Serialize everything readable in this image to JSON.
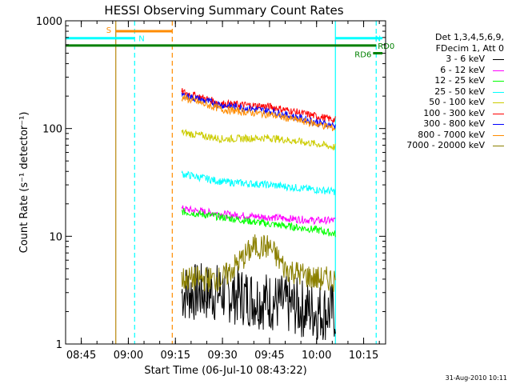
{
  "chart_data": {
    "type": "line",
    "title": "HESSI Observing Summary Count Rates",
    "xlabel": "Start Time (06-Jul-10 08:43:22)",
    "ylabel": "Count Rate (s⁻¹ detector⁻¹)",
    "yscale": "log",
    "ylim": [
      1,
      1000
    ],
    "xlim": [
      "08:40",
      "10:22"
    ],
    "x_ticks": [
      "08:45",
      "09:00",
      "09:15",
      "09:30",
      "09:45",
      "10:00",
      "10:15"
    ],
    "y_ticks": [
      "1",
      "10",
      "100",
      "1000"
    ],
    "legend_header": [
      "Det 1,3,4,5,6,9,",
      "FDecim 1, Att 0"
    ],
    "legend_position": "right",
    "series": [
      {
        "name": "3 - 6 keV",
        "color": "#000000",
        "x": [
          "09:17",
          "09:30",
          "09:45",
          "10:00",
          "10:06"
        ],
        "y": [
          3,
          3,
          2.5,
          2,
          2
        ]
      },
      {
        "name": "6 - 12 keV",
        "color": "#ff00ff",
        "x": [
          "09:17",
          "09:30",
          "09:45",
          "10:00",
          "10:06"
        ],
        "y": [
          18,
          16,
          15,
          14,
          14
        ]
      },
      {
        "name": "12 - 25 keV",
        "color": "#00ff00",
        "x": [
          "09:17",
          "09:30",
          "09:45",
          "10:00",
          "10:06"
        ],
        "y": [
          17,
          15,
          13,
          11.5,
          10.5
        ]
      },
      {
        "name": "25 - 50 keV",
        "color": "#00ffff",
        "x": [
          "09:17",
          "09:30",
          "09:45",
          "10:00",
          "10:06"
        ],
        "y": [
          38,
          32,
          30,
          27,
          26
        ]
      },
      {
        "name": "50 - 100 keV",
        "color": "#cccc00",
        "x": [
          "09:17",
          "09:30",
          "09:45",
          "10:00",
          "10:06"
        ],
        "y": [
          92,
          80,
          82,
          72,
          67
        ]
      },
      {
        "name": "100 - 300 keV",
        "color": "#ff0000",
        "x": [
          "09:17",
          "09:30",
          "09:45",
          "10:00",
          "10:06"
        ],
        "y": [
          220,
          170,
          160,
          130,
          120
        ]
      },
      {
        "name": "300 - 800 keV",
        "color": "#0000ff",
        "x": [
          "09:17",
          "09:30",
          "09:45",
          "10:00",
          "10:06"
        ],
        "y": [
          205,
          165,
          145,
          115,
          105
        ]
      },
      {
        "name": "800 - 7000 keV",
        "color": "#ff8c00",
        "x": [
          "09:17",
          "09:30",
          "09:45",
          "10:00",
          "10:06"
        ],
        "y": [
          195,
          150,
          135,
          110,
          100
        ]
      },
      {
        "name": "7000 - 20000 keV",
        "color": "#8b8000",
        "x": [
          "09:17",
          "09:30",
          "09:40",
          "09:45",
          "09:50",
          "10:00",
          "10:06"
        ],
        "y": [
          4,
          4,
          8,
          8,
          5,
          4,
          4
        ]
      }
    ],
    "annotations": [
      {
        "label": "S",
        "color": "#ff8c00",
        "x_start": "08:56",
        "x_end": "09:14",
        "y": 800
      },
      {
        "label": "N",
        "color": "#00ffff",
        "x_start": "08:40",
        "x_end": "09:02",
        "y": 690
      },
      {
        "label": "N",
        "color": "#00ffff",
        "x_start": "10:06",
        "x_end": "10:21",
        "y": 690
      },
      {
        "label": "RD0",
        "color": "#008000",
        "x_start": "08:40",
        "x_end": "10:19",
        "y": 590
      },
      {
        "label": "RD6",
        "color": "#008000",
        "x_start": "10:18",
        "x_end": "10:21",
        "y": 500
      }
    ],
    "vertical_lines": [
      {
        "x": "08:56",
        "color": "#b8860b",
        "style": "solid"
      },
      {
        "x": "09:02",
        "color": "#00ffff",
        "style": "dashed"
      },
      {
        "x": "09:14",
        "color": "#ff8c00",
        "style": "dashed"
      },
      {
        "x": "10:06",
        "color": "#00ffff",
        "style": "solid"
      },
      {
        "x": "10:19",
        "color": "#00ffff",
        "style": "dashed"
      }
    ]
  },
  "footer_date": "31-Aug-2010 10:11"
}
